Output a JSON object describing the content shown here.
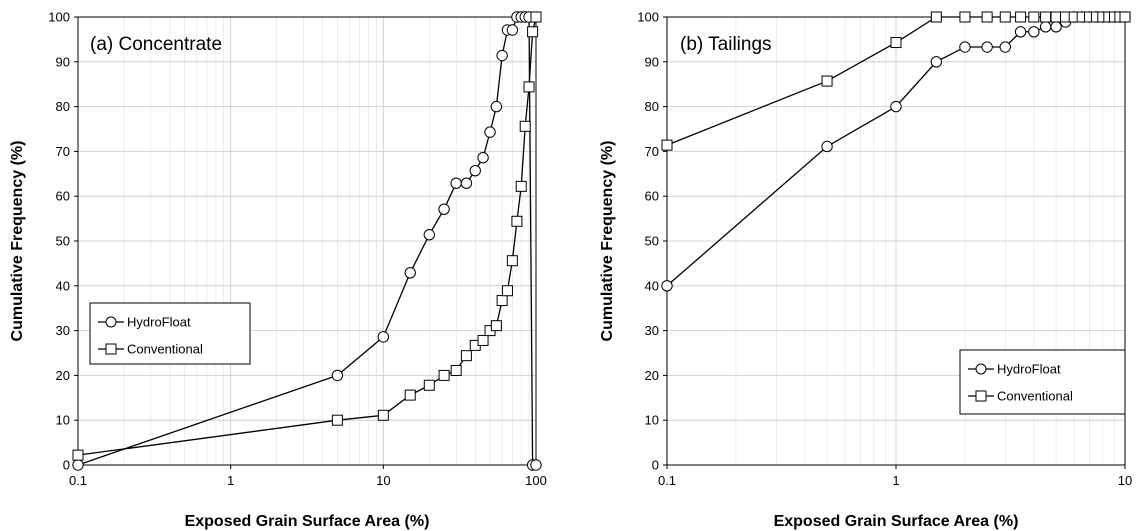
{
  "chart_data": [
    {
      "type": "line",
      "title": "(a) Concentrate",
      "xlabel": "Exposed Grain Surface Area (%)",
      "ylabel": "Cumulative Frequency (%)",
      "xscale": "log",
      "xlim": [
        0.1,
        100
      ],
      "ylim": [
        0,
        100
      ],
      "xticks": [
        "0.1",
        "1",
        "10",
        "100"
      ],
      "yticks": [
        "0",
        "10",
        "20",
        "30",
        "40",
        "50",
        "60",
        "70",
        "80",
        "90",
        "100"
      ],
      "grid": true,
      "legend_position": "middle-left",
      "series": [
        {
          "name": "HydroFloat",
          "marker": "circle",
          "x": [
            0.1,
            5,
            10,
            15,
            20,
            25,
            30,
            35,
            40,
            45,
            50,
            55,
            60,
            65,
            70,
            75,
            80,
            85,
            90,
            95,
            100
          ],
          "y": [
            0,
            20,
            28.6,
            42.9,
            51.4,
            57.1,
            62.9,
            62.9,
            65.7,
            68.6,
            74.3,
            80,
            91.4,
            97.1,
            97.1,
            100,
            100,
            100,
            100,
            0,
            0
          ]
        },
        {
          "name": "Conventional",
          "marker": "square",
          "x": [
            0.1,
            5,
            10,
            15,
            20,
            25,
            30,
            35,
            40,
            45,
            50,
            55,
            60,
            65,
            70,
            75,
            80,
            85,
            90,
            95,
            100
          ],
          "y": [
            2.2,
            10,
            11.1,
            15.6,
            17.8,
            20,
            21.1,
            24.4,
            26.7,
            27.8,
            30,
            31.1,
            36.7,
            38.9,
            45.6,
            54.4,
            62.2,
            75.6,
            84.4,
            96.7,
            100
          ]
        }
      ]
    },
    {
      "type": "line",
      "title": "(b) Tailings",
      "xlabel": "Exposed Grain Surface Area (%)",
      "ylabel": "Cumulative Frequency (%)",
      "xscale": "log",
      "xlim": [
        0.1,
        10
      ],
      "ylim": [
        0,
        100
      ],
      "xticks": [
        "0.1",
        "1",
        "10"
      ],
      "yticks": [
        "0",
        "10",
        "20",
        "30",
        "40",
        "50",
        "60",
        "70",
        "80",
        "90",
        "100"
      ],
      "grid": true,
      "legend_position": "bottom-right",
      "series": [
        {
          "name": "HydroFloat",
          "marker": "circle",
          "x": [
            0.1,
            0.5,
            1,
            1.5,
            2,
            2.5,
            3,
            3.5,
            4,
            4.5,
            5,
            5.5,
            6,
            6.5,
            7,
            7.5,
            8,
            8.5,
            9,
            9.5,
            10
          ],
          "y": [
            40,
            71.1,
            80,
            90,
            93.3,
            93.3,
            93.3,
            96.7,
            96.7,
            97.8,
            97.8,
            98.9,
            100,
            100,
            100,
            100,
            100,
            100,
            100,
            100,
            100
          ]
        },
        {
          "name": "Conventional",
          "marker": "square",
          "x": [
            0.1,
            0.5,
            1,
            1.5,
            2,
            2.5,
            3,
            3.5,
            4,
            4.5,
            5,
            5.5,
            6,
            6.5,
            7,
            7.5,
            8,
            8.5,
            9,
            9.5,
            10
          ],
          "y": [
            71.4,
            85.7,
            94.3,
            100,
            100,
            100,
            100,
            100,
            100,
            100,
            100,
            100,
            100,
            100,
            100,
            100,
            100,
            100,
            100,
            100,
            100
          ]
        }
      ]
    }
  ]
}
